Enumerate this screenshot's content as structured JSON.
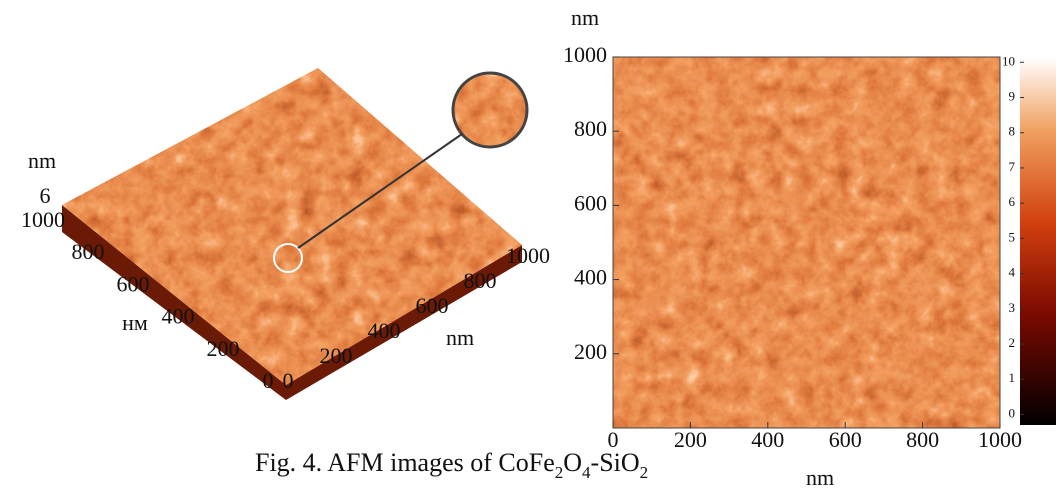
{
  "figure": {
    "left_3d": {
      "z_unit": "nm",
      "z_top": "6",
      "y_ticks": [
        0,
        200,
        400,
        600,
        800,
        1000
      ],
      "y_label": "нм",
      "x_ticks": [
        0,
        200,
        400,
        600,
        800,
        1000
      ],
      "x_label": "nm",
      "lim": [
        0,
        1000
      ]
    },
    "right_2d": {
      "y_unit": "nm",
      "x_label": "nm",
      "xlim": [
        0,
        1000
      ],
      "ylim": [
        0,
        1000
      ],
      "xticks": [
        0,
        200,
        400,
        600,
        800,
        1000
      ],
      "yticks": [
        200,
        400,
        600,
        800,
        1000
      ]
    },
    "colorbar": {
      "clim": [
        -0.3,
        10.15
      ],
      "ticks": [
        0,
        1,
        2,
        3,
        4,
        5,
        6,
        7,
        8,
        9,
        10
      ]
    },
    "caption": [
      {
        "text": "Fig. 4. AFM  images of CoFe"
      },
      {
        "text": "2",
        "sub": true
      },
      {
        "text": "O"
      },
      {
        "text": "4",
        "sub": true
      },
      {
        "text": "-SiO"
      },
      {
        "text": "2",
        "sub": true
      }
    ]
  }
}
